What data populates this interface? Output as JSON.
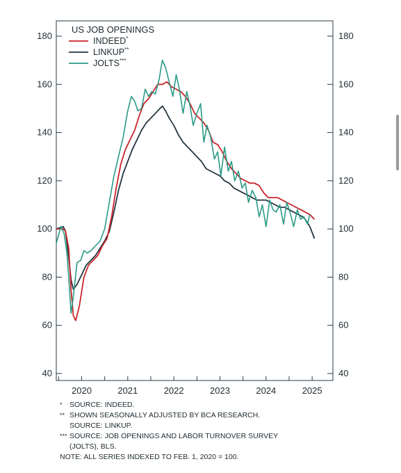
{
  "chart_data": {
    "type": "line",
    "title": "US JOB OPENINGS",
    "xlabel": "",
    "ylabel": "",
    "xlim": [
      2019.45,
      2025.45
    ],
    "ylim": [
      40,
      180
    ],
    "x_ticks": [
      2020,
      2021,
      2022,
      2023,
      2024,
      2025
    ],
    "y_ticks": [
      40,
      60,
      80,
      100,
      120,
      140,
      160,
      180
    ],
    "legend_position": "top-left",
    "grid": false,
    "series": [
      {
        "name": "INDEED",
        "marker": "*",
        "color": "#c8242b",
        "x": [
          2019.45,
          2019.6,
          2019.65,
          2019.72,
          2019.77,
          2019.82,
          2019.87,
          2019.95,
          2020.05,
          2020.15,
          2020.25,
          2020.35,
          2020.45,
          2020.55,
          2020.65,
          2020.75,
          2020.85,
          2020.95,
          2021.05,
          2021.15,
          2021.25,
          2021.35,
          2021.45,
          2021.55,
          2021.65,
          2021.75,
          2021.85,
          2021.95,
          2022.05,
          2022.15,
          2022.25,
          2022.35,
          2022.45,
          2022.55,
          2022.65,
          2022.75,
          2022.85,
          2022.95,
          2023.05,
          2023.15,
          2023.25,
          2023.35,
          2023.45,
          2023.55,
          2023.65,
          2023.75,
          2023.85,
          2023.95,
          2024.05,
          2024.15,
          2024.25,
          2024.35,
          2024.45,
          2024.55,
          2024.65,
          2024.75,
          2024.85,
          2024.95,
          2025.0,
          2025.05
        ],
        "y": [
          100,
          100,
          99,
          92,
          75,
          64,
          62,
          68,
          80,
          85,
          87,
          89,
          93,
          96,
          105,
          117,
          127,
          133,
          137,
          141,
          147,
          152,
          154,
          157,
          160,
          160,
          161,
          159,
          158,
          157,
          155,
          152,
          148,
          146,
          144,
          141,
          136,
          135,
          132,
          128,
          125,
          123,
          121,
          120,
          119,
          119,
          118,
          115,
          113,
          113,
          113,
          112,
          111,
          110,
          109,
          108,
          107,
          106,
          105,
          104
        ]
      },
      {
        "name": "LINKUP",
        "marker": "**",
        "color": "#243540",
        "x": [
          2019.45,
          2019.6,
          2019.65,
          2019.72,
          2019.77,
          2019.82,
          2019.9,
          2020.0,
          2020.1,
          2020.2,
          2020.3,
          2020.4,
          2020.5,
          2020.6,
          2020.7,
          2020.8,
          2020.9,
          2021.0,
          2021.1,
          2021.2,
          2021.3,
          2021.4,
          2021.5,
          2021.6,
          2021.7,
          2021.75,
          2021.82,
          2021.9,
          2022.0,
          2022.1,
          2022.2,
          2022.3,
          2022.4,
          2022.5,
          2022.6,
          2022.7,
          2022.8,
          2022.9,
          2023.0,
          2023.1,
          2023.2,
          2023.3,
          2023.4,
          2023.5,
          2023.6,
          2023.7,
          2023.8,
          2023.9,
          2024.0,
          2024.1,
          2024.2,
          2024.3,
          2024.4,
          2024.5,
          2024.6,
          2024.7,
          2024.8,
          2024.85,
          2024.95,
          2025.05
        ],
        "y": [
          100,
          101,
          99,
          88,
          79,
          75,
          77,
          81,
          85,
          87,
          89,
          92,
          95,
          99,
          107,
          116,
          123,
          128,
          133,
          137,
          141,
          144,
          146,
          148,
          150,
          151,
          149,
          146,
          143,
          139,
          136,
          134,
          132,
          130,
          128,
          125,
          124,
          123,
          122,
          120,
          119,
          117,
          116,
          115,
          114,
          113,
          112,
          112,
          112,
          111,
          110,
          109,
          109,
          108,
          107,
          106,
          105,
          104,
          101,
          96
        ]
      },
      {
        "name": "JOLTS",
        "marker": "***",
        "color": "#2a9a86",
        "x": [
          2019.45,
          2019.55,
          2019.62,
          2019.68,
          2019.72,
          2019.77,
          2019.82,
          2019.9,
          2019.98,
          2020.05,
          2020.12,
          2020.2,
          2020.3,
          2020.4,
          2020.5,
          2020.6,
          2020.7,
          2020.8,
          2020.9,
          2021.0,
          2021.08,
          2021.15,
          2021.22,
          2021.3,
          2021.38,
          2021.45,
          2021.52,
          2021.6,
          2021.68,
          2021.75,
          2021.82,
          2021.9,
          2021.98,
          2022.05,
          2022.12,
          2022.2,
          2022.28,
          2022.35,
          2022.42,
          2022.5,
          2022.58,
          2022.65,
          2022.72,
          2022.8,
          2022.88,
          2022.95,
          2023.02,
          2023.1,
          2023.18,
          2023.25,
          2023.32,
          2023.4,
          2023.48,
          2023.55,
          2023.62,
          2023.7,
          2023.78,
          2023.85,
          2023.92,
          2024.0,
          2024.08,
          2024.15,
          2024.22,
          2024.3,
          2024.38,
          2024.45,
          2024.52,
          2024.6,
          2024.68,
          2024.75,
          2024.82,
          2024.9,
          2024.95
        ],
        "y": [
          94,
          101,
          98,
          90,
          80,
          65,
          72,
          86,
          87,
          91,
          90,
          91,
          93,
          95,
          100,
          111,
          122,
          130,
          138,
          149,
          155,
          153,
          149,
          150,
          158,
          155,
          157,
          156,
          162,
          170,
          167,
          161,
          155,
          164,
          158,
          148,
          157,
          151,
          143,
          148,
          152,
          136,
          143,
          138,
          129,
          132,
          122,
          134,
          124,
          128,
          120,
          124,
          117,
          119,
          111,
          116,
          113,
          105,
          110,
          101,
          112,
          108,
          107,
          110,
          102,
          111,
          107,
          101,
          108,
          104,
          105,
          102,
          106
        ]
      }
    ]
  },
  "notes": [
    {
      "mark": "*",
      "text": "SOURCE: INDEED."
    },
    {
      "mark": "**",
      "text": "SHOWN SEASONALLY ADJUSTED BY BCA RESEARCH."
    },
    {
      "mark": "",
      "text": "SOURCE: LINKUP."
    },
    {
      "mark": "***",
      "text": "SOURCE: JOB OPENINGS AND LABOR TURNOVER SURVEY"
    },
    {
      "mark": "",
      "text": "(JOLTS), BLS."
    },
    {
      "mark": "",
      "text": "NOTE: ALL SERIES INDEXED TO FEB. 1, 2020 = 100."
    }
  ]
}
